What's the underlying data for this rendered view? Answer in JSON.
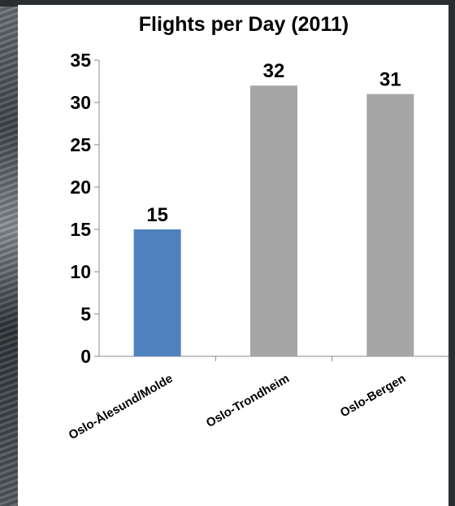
{
  "chart_data": {
    "type": "bar",
    "title": "Flights per Day (2011)",
    "categories": [
      "Oslo-Ålesund/Molde",
      "Oslo-Trondheim",
      "Oslo-Bergen"
    ],
    "values": [
      15,
      32,
      31
    ],
    "data_labels": [
      "15",
      "32",
      "31"
    ],
    "bar_colors": [
      "#4f81bd",
      "#a6a6a6",
      "#a6a6a6"
    ],
    "yticks": [
      "0",
      "5",
      "10",
      "15",
      "20",
      "25",
      "30",
      "35"
    ],
    "ylim": [
      0,
      35
    ],
    "grid": false,
    "legend": "none"
  }
}
